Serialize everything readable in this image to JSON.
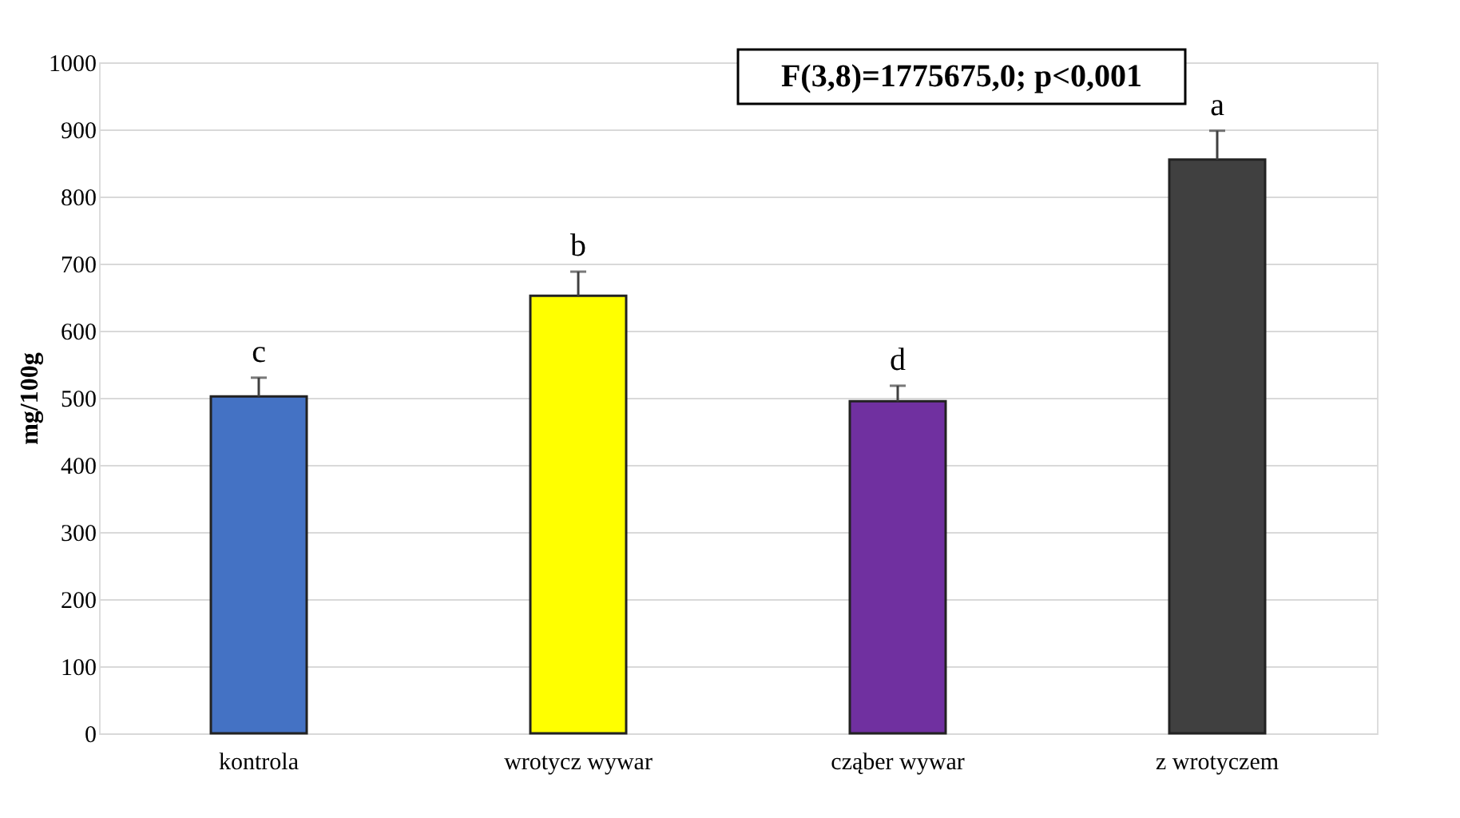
{
  "chart_data": {
    "type": "bar",
    "ylabel": "mg/100g",
    "categories": [
      "kontrola",
      "wrotycz wywar",
      "cząber wywar",
      "z wrotyczem"
    ],
    "values": [
      502,
      652,
      495,
      855
    ],
    "colors": [
      "#4472c4",
      "#ffff00",
      "#7030a0",
      "#404040"
    ],
    "errors": [
      [
        502,
        530
      ],
      [
        652,
        688
      ],
      [
        495,
        518
      ],
      [
        855,
        898
      ]
    ],
    "ylim": [
      0,
      1000
    ],
    "yticks": [
      0,
      100,
      200,
      300,
      400,
      500,
      600,
      700,
      800,
      900,
      1000
    ],
    "grid": "y",
    "annotations": [
      {
        "text": "c",
        "x": "kontrola",
        "y": 530
      },
      {
        "text": "b",
        "x": "wrotycz wywar",
        "y": 688
      },
      {
        "text": "d",
        "x": "cząber wywar",
        "y": 518
      },
      {
        "text": "a",
        "x": "z wrotyczem",
        "y": 898
      },
      "F(3,8)=1775675,0; p<0,001"
    ]
  }
}
